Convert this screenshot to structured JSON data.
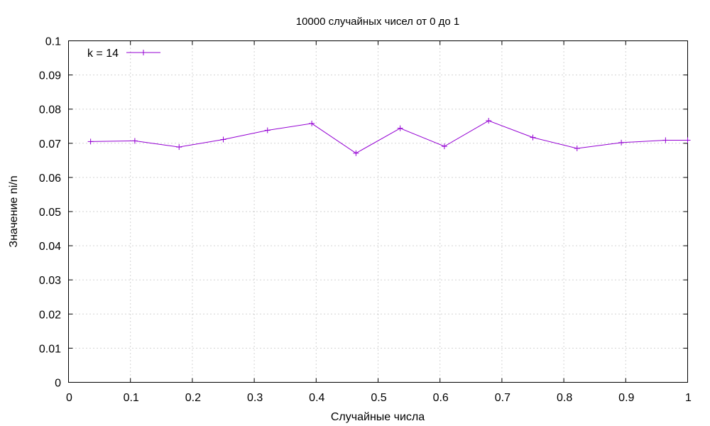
{
  "chart_data": {
    "type": "line",
    "title": "10000 случайных чисел от 0 до 1",
    "xlabel": "Случайные числа",
    "ylabel": "Значение ni/n",
    "xlim": [
      0,
      1
    ],
    "ylim": [
      0,
      0.1
    ],
    "xticks": [
      {
        "value": 0,
        "label": "0"
      },
      {
        "value": 0.1,
        "label": "0.1"
      },
      {
        "value": 0.2,
        "label": "0.2"
      },
      {
        "value": 0.3,
        "label": "0.3"
      },
      {
        "value": 0.4,
        "label": "0.4"
      },
      {
        "value": 0.5,
        "label": "0.5"
      },
      {
        "value": 0.6,
        "label": "0.6"
      },
      {
        "value": 0.7,
        "label": "0.7"
      },
      {
        "value": 0.8,
        "label": "0.8"
      },
      {
        "value": 0.9,
        "label": "0.9"
      },
      {
        "value": 1,
        "label": "1"
      }
    ],
    "yticks": [
      {
        "value": 0,
        "label": "0"
      },
      {
        "value": 0.01,
        "label": "0.01"
      },
      {
        "value": 0.02,
        "label": "0.02"
      },
      {
        "value": 0.03,
        "label": "0.03"
      },
      {
        "value": 0.04,
        "label": "0.04"
      },
      {
        "value": 0.05,
        "label": "0.05"
      },
      {
        "value": 0.06,
        "label": "0.06"
      },
      {
        "value": 0.07,
        "label": "0.07"
      },
      {
        "value": 0.08,
        "label": "0.08"
      },
      {
        "value": 0.09,
        "label": "0.09"
      },
      {
        "value": 0.1,
        "label": "0.1"
      }
    ],
    "grid": true,
    "legend_position": "top-left",
    "series": [
      {
        "name": "k = 14",
        "color": "#9400d3",
        "marker": "plus",
        "x": [
          0.0357,
          0.1071,
          0.1786,
          0.25,
          0.3214,
          0.3929,
          0.4643,
          0.5357,
          0.6071,
          0.6786,
          0.75,
          0.8214,
          0.8929,
          0.9643,
          1.0
        ],
        "y": [
          0.0705,
          0.0707,
          0.0689,
          0.0711,
          0.0738,
          0.0758,
          0.0671,
          0.0744,
          0.0691,
          0.0766,
          0.0717,
          0.0685,
          0.0702,
          0.0709,
          0.0709
        ]
      }
    ]
  }
}
